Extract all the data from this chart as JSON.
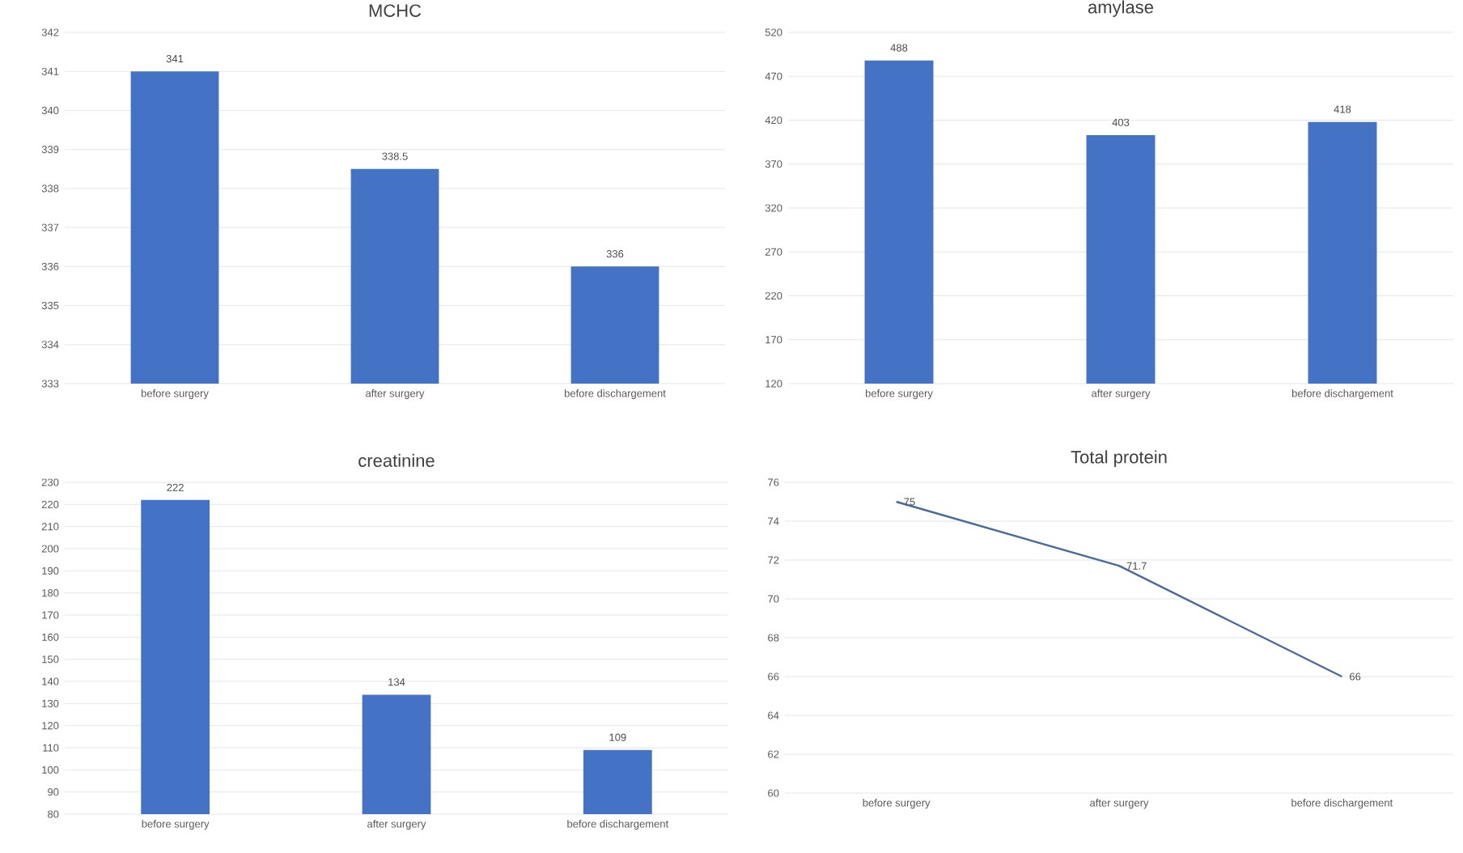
{
  "chart_data": [
    {
      "type": "bar",
      "title": "MCHC",
      "categories": [
        "before surgery",
        "after surgery",
        "before dischargement"
      ],
      "values": [
        341,
        338.5,
        336
      ],
      "color": "#4472c4",
      "ylim": [
        333,
        342
      ],
      "yticks": [
        333,
        334,
        335,
        336,
        337,
        338,
        339,
        340,
        341,
        342
      ],
      "grid": "y",
      "data_labels": true
    },
    {
      "type": "bar",
      "title": "amylase",
      "categories": [
        "before surgery",
        "after surgery",
        "before dischargement"
      ],
      "values": [
        488,
        403,
        418
      ],
      "color": "#4472c4",
      "ylim": [
        120,
        520
      ],
      "yticks": [
        120,
        170,
        220,
        270,
        320,
        370,
        420,
        470,
        520
      ],
      "grid": "y",
      "data_labels": true
    },
    {
      "type": "bar",
      "title": "creatinine",
      "categories": [
        "before surgery",
        "after surgery",
        "before dischargement"
      ],
      "values": [
        222,
        134,
        109
      ],
      "color": "#4472c4",
      "ylim": [
        80,
        230
      ],
      "yticks": [
        80,
        90,
        100,
        110,
        120,
        130,
        140,
        150,
        160,
        170,
        180,
        190,
        200,
        210,
        220,
        230
      ],
      "grid": "y",
      "data_labels": true
    },
    {
      "type": "line",
      "title": "Total protein",
      "categories": [
        "before surgery",
        "after surgery",
        "before dischargement"
      ],
      "values": [
        75,
        71.7,
        66
      ],
      "color": "#4a6a9c",
      "ylim": [
        60,
        76
      ],
      "yticks": [
        60,
        62,
        64,
        66,
        68,
        70,
        72,
        74,
        76
      ],
      "grid": "y",
      "marker": "none",
      "data_labels": true
    }
  ]
}
